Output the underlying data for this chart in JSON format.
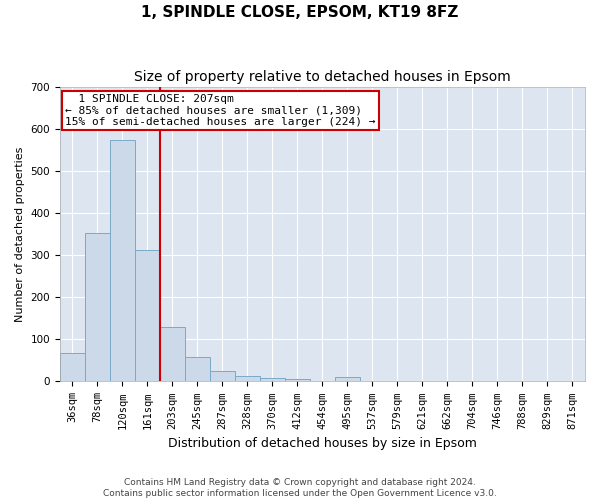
{
  "title": "1, SPINDLE CLOSE, EPSOM, KT19 8FZ",
  "subtitle": "Size of property relative to detached houses in Epsom",
  "xlabel": "Distribution of detached houses by size in Epsom",
  "ylabel": "Number of detached properties",
  "bins": [
    "36sqm",
    "78sqm",
    "120sqm",
    "161sqm",
    "203sqm",
    "245sqm",
    "287sqm",
    "328sqm",
    "370sqm",
    "412sqm",
    "454sqm",
    "495sqm",
    "537sqm",
    "579sqm",
    "621sqm",
    "662sqm",
    "704sqm",
    "746sqm",
    "788sqm",
    "829sqm",
    "871sqm"
  ],
  "values": [
    68,
    352,
    572,
    313,
    130,
    58,
    25,
    14,
    8,
    5,
    0,
    10,
    0,
    0,
    0,
    0,
    0,
    0,
    0,
    0,
    0
  ],
  "bar_color": "#ccd9e8",
  "bar_edge_color": "#7aaac8",
  "vline_x": 3.5,
  "vline_color": "#cc0000",
  "annotation_text": "  1 SPINDLE CLOSE: 207sqm\n← 85% of detached houses are smaller (1,309)\n15% of semi-detached houses are larger (224) →",
  "annotation_box_color": "#ffffff",
  "annotation_box_edge": "#cc0000",
  "ylim": [
    0,
    700
  ],
  "yticks": [
    0,
    100,
    200,
    300,
    400,
    500,
    600,
    700
  ],
  "background_color": "#dde6f0",
  "footer": "Contains HM Land Registry data © Crown copyright and database right 2024.\nContains public sector information licensed under the Open Government Licence v3.0.",
  "title_fontsize": 11,
  "subtitle_fontsize": 10,
  "xlabel_fontsize": 9,
  "ylabel_fontsize": 8,
  "tick_fontsize": 7.5,
  "footer_fontsize": 6.5,
  "annot_fontsize": 8
}
